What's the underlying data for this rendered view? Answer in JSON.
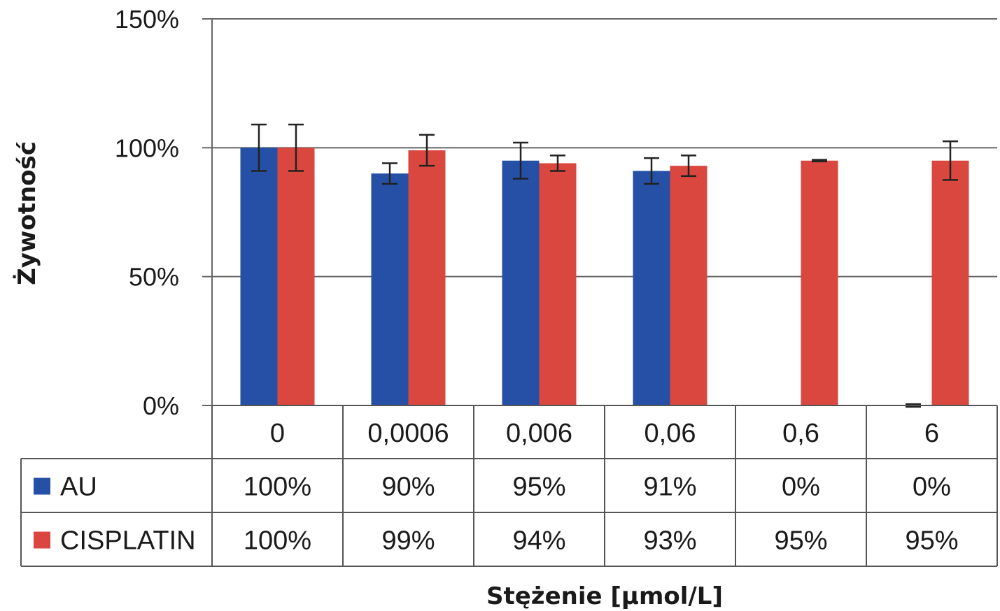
{
  "chart_data": {
    "type": "bar",
    "ylabel": "Żywotność",
    "xlabel": "Stężenie [µmol/L]",
    "ylim": [
      0,
      150
    ],
    "yticks": [
      "0%",
      "50%",
      "100%",
      "150%"
    ],
    "ytick_values": [
      0,
      50,
      100,
      150
    ],
    "grid": true,
    "legend": "data-table-left",
    "categories": [
      "0",
      "0,0006",
      "0,006",
      "0,06",
      "0,6",
      "6"
    ],
    "series": [
      {
        "name": "AU",
        "color": "#2550a6",
        "values": [
          100,
          90,
          95,
          91,
          0,
          0
        ],
        "errors": [
          9,
          4,
          7,
          5,
          0,
          0.5
        ],
        "labels": [
          "100%",
          "90%",
          "95%",
          "91%",
          "0%",
          "0%"
        ]
      },
      {
        "name": "CISPLATIN",
        "color": "#d9473f",
        "values": [
          100,
          99,
          94,
          93,
          95,
          95
        ],
        "errors": [
          9,
          6,
          3,
          4,
          0.3,
          7.5
        ],
        "labels": [
          "100%",
          "99%",
          "94%",
          "93%",
          "95%",
          "95%"
        ]
      }
    ]
  }
}
